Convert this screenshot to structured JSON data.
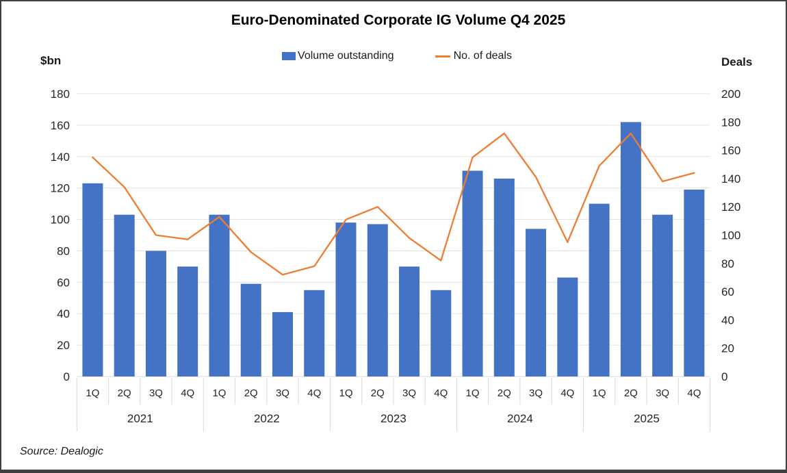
{
  "title": "Euro-Denominated Corporate IG Volume Q4 2025",
  "source": "Source: Dealogic",
  "chart_data": {
    "type": "combo",
    "categories": [
      "1Q",
      "2Q",
      "3Q",
      "4Q",
      "1Q",
      "2Q",
      "3Q",
      "4Q",
      "1Q",
      "2Q",
      "3Q",
      "4Q",
      "1Q",
      "2Q",
      "3Q",
      "4Q",
      "1Q",
      "2Q",
      "3Q",
      "4Q"
    ],
    "year_groups": [
      "2021",
      "2022",
      "2023",
      "2024",
      "2025"
    ],
    "series": [
      {
        "name": "Volume outstanding",
        "type": "bar",
        "axis": "left",
        "color": "#4472C4",
        "values": [
          123,
          103,
          80,
          70,
          103,
          59,
          41,
          55,
          98,
          97,
          70,
          55,
          131,
          126,
          94,
          63,
          110,
          162,
          103,
          119
        ]
      },
      {
        "name": "No. of deals",
        "type": "line",
        "axis": "right",
        "color": "#ED7D31",
        "values": [
          155,
          134,
          100,
          97,
          113,
          88,
          72,
          78,
          111,
          120,
          98,
          82,
          155,
          172,
          141,
          95,
          149,
          172,
          138,
          144
        ]
      }
    ],
    "left_axis": {
      "label": "$bn",
      "min": 0,
      "max": 180,
      "step": 20
    },
    "right_axis": {
      "label": "Deals",
      "min": 0,
      "max": 200,
      "step": 20
    },
    "grid": true,
    "legend_position": "top"
  }
}
